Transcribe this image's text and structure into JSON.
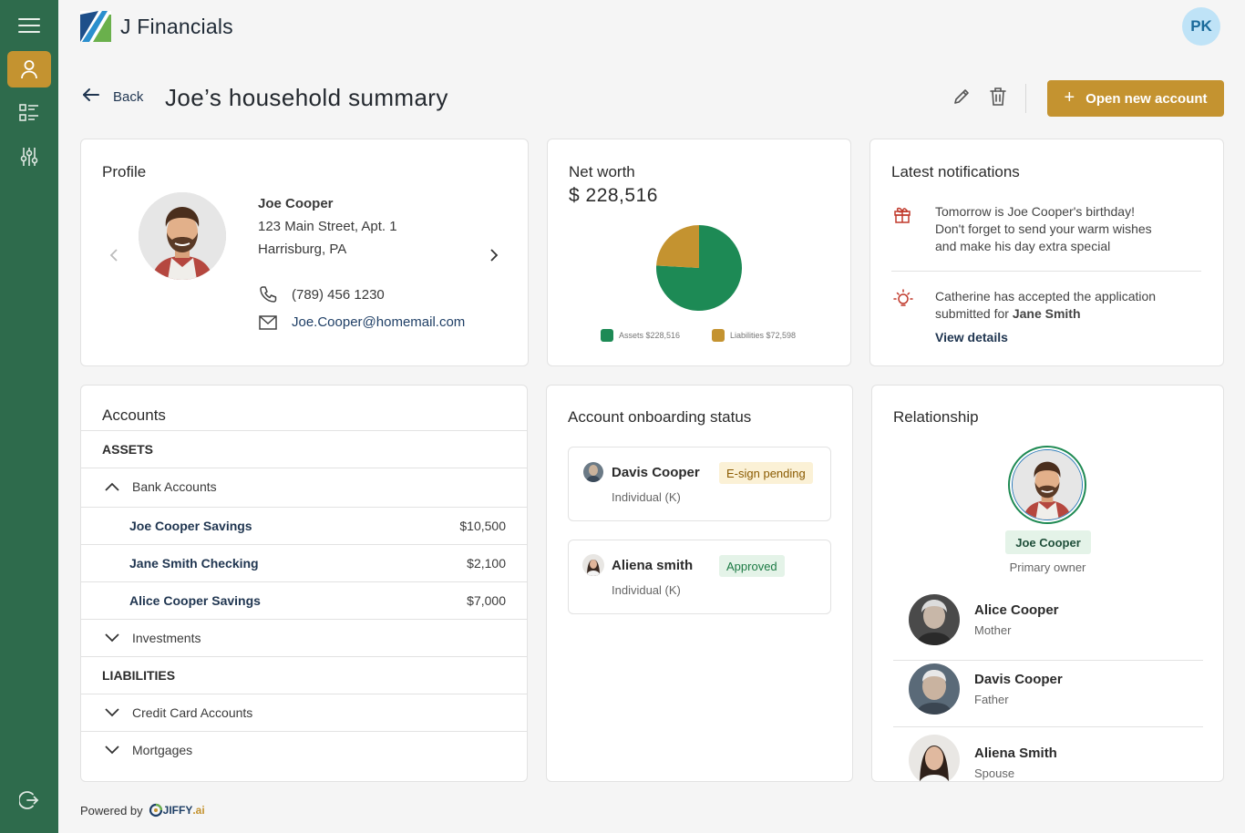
{
  "app": {
    "name": "J Financials",
    "user_initials": "PK"
  },
  "sidebar": {
    "items": [
      {
        "icon": "menu-icon"
      },
      {
        "icon": "user-icon",
        "active": true
      },
      {
        "icon": "list-icon"
      },
      {
        "icon": "sliders-icon"
      },
      {
        "icon": "logout-icon"
      }
    ]
  },
  "header": {
    "back_label": "Back",
    "title": "Joe’s household summary",
    "open_account_label": "Open new account"
  },
  "profile": {
    "title": "Profile",
    "name": "Joe Cooper",
    "address_line1": "123 Main Street, Apt. 1",
    "address_line2": "Harrisburg, PA",
    "phone": "(789) 456 1230",
    "email": "Joe.Cooper@homemail.com"
  },
  "net_worth": {
    "title": "Net worth",
    "value": "$ 228,516",
    "legend_assets": "Assets $228,516",
    "legend_liabilities": "Liabilities $72,598"
  },
  "chart_data": {
    "type": "pie",
    "categories": [
      "Assets",
      "Liabilities"
    ],
    "values": [
      228516,
      72598
    ],
    "colors": [
      "#1d8a55",
      "#c49330"
    ],
    "title": "",
    "legend": "bottom"
  },
  "notifications": {
    "title": "Latest notifications",
    "items": [
      {
        "icon": "gift-icon",
        "line1": "Tomorrow is Joe Cooper's birthday!",
        "line2": "Don't forget to send your warm wishes",
        "line3": "and make his day extra special"
      },
      {
        "icon": "lightbulb-icon",
        "line1": "Catherine has accepted the application",
        "line2_prefix": "submitted for ",
        "line2_bold": "Jane Smith",
        "link": "View details"
      }
    ]
  },
  "accounts": {
    "title": "Accounts",
    "assets_label": "ASSETS",
    "liabilities_label": "LIABILITIES",
    "groups": {
      "bank": "Bank Accounts",
      "investments": "Investments",
      "credit": "Credit Card Accounts",
      "mortgages": "Mortgages"
    },
    "bank_items": [
      {
        "name": "Joe Cooper Savings",
        "amount": "$10,500"
      },
      {
        "name": "Jane Smith Checking",
        "amount": "$2,100"
      },
      {
        "name": "Alice Cooper Savings",
        "amount": "$7,000"
      }
    ]
  },
  "onboarding": {
    "title": "Account onboarding status",
    "items": [
      {
        "name": "Davis Cooper",
        "type": "Individual (K)",
        "status": "E-sign pending",
        "status_color": "#8a5a00"
      },
      {
        "name": "Aliena smith",
        "type": "Individual (K)",
        "status": "Approved",
        "status_color": "#1c7a44"
      }
    ]
  },
  "relationship": {
    "title": "Relationship",
    "main_name": "Joe Cooper",
    "main_role": "Primary owner",
    "people": [
      {
        "name": "Alice Cooper",
        "role": "Mother"
      },
      {
        "name": "Davis Cooper",
        "role": "Father"
      },
      {
        "name": "Aliena Smith",
        "role": "Spouse"
      }
    ]
  },
  "footer": {
    "powered_by": "Powered by",
    "brand": "JIFFY",
    "brand_suffix": ".ai"
  }
}
